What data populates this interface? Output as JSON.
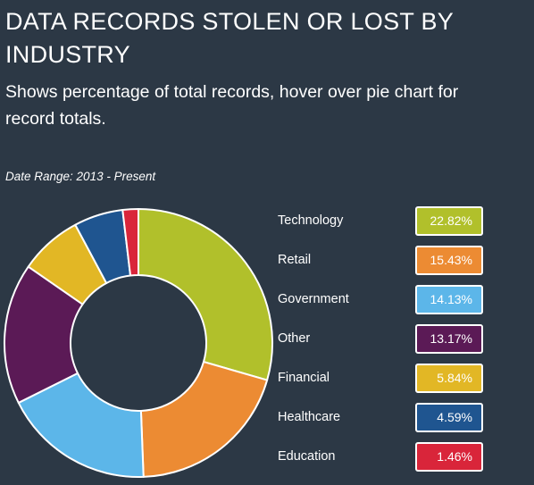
{
  "header": {
    "title": "DATA RECORDS STOLEN OR LOST BY INDUSTRY",
    "subtitle": "Shows percentage of total records, hover over pie chart for record totals.",
    "date_range": "Date Range: 2013 - Present"
  },
  "colors": {
    "background": "#2c3845",
    "slice_border": "#ffffff"
  },
  "chart_data": {
    "type": "pie",
    "variant": "donut",
    "title": "DATA RECORDS STOLEN OR LOST BY INDUSTRY",
    "subtitle": "Shows percentage of total records, hover over pie chart for record totals.",
    "date_range": "Date Range: 2013 - Present",
    "legend_position": "right",
    "start_angle_deg": 0,
    "direction": "clockwise",
    "unit": "%",
    "slices": [
      {
        "label": "Technology",
        "value": 22.82,
        "display": "22.82%",
        "color": "#b1c02b"
      },
      {
        "label": "Retail",
        "value": 15.43,
        "display": "15.43%",
        "color": "#ec8b33"
      },
      {
        "label": "Government",
        "value": 14.13,
        "display": "14.13%",
        "color": "#5cb6e9"
      },
      {
        "label": "Other",
        "value": 13.17,
        "display": "13.17%",
        "color": "#5b1a56"
      },
      {
        "label": "Financial",
        "value": 5.84,
        "display": "5.84%",
        "color": "#e2b725"
      },
      {
        "label": "Healthcare",
        "value": 4.59,
        "display": "4.59%",
        "color": "#1f5590"
      },
      {
        "label": "Education",
        "value": 1.46,
        "display": "1.46%",
        "color": "#d9253a"
      }
    ]
  }
}
